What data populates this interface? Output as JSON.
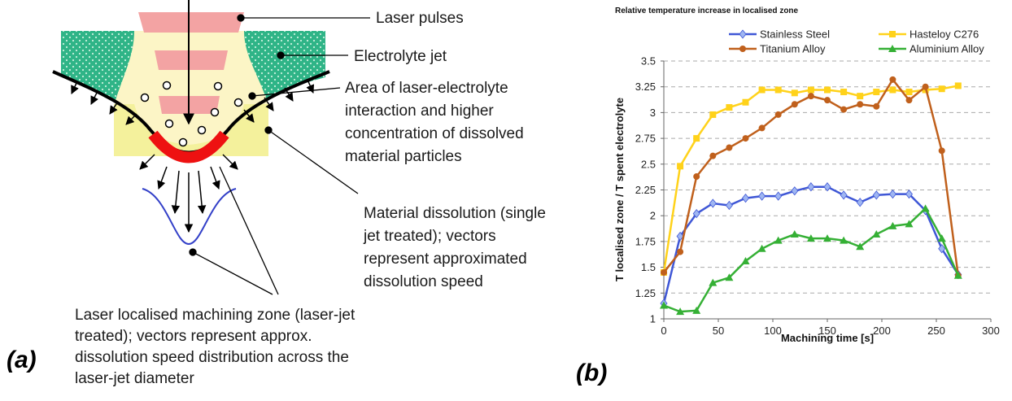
{
  "panel_a": {
    "label": "(a)",
    "labels": {
      "laser_pulses": "Laser pulses",
      "electrolyte_jet": "Electrolyte jet",
      "interaction_area": [
        "Area of laser-electrolyte",
        "interaction and higher",
        "concentration of dissolved",
        "material particles"
      ],
      "material_dissolution": [
        "Material dissolution (single",
        "jet treated); vectors",
        "represent approximated",
        "dissolution speed"
      ],
      "machining_zone": [
        "Laser localised machining zone (laser-jet",
        "treated); vectors represent approx.",
        "dissolution speed distribution across the",
        "laser-jet diameter"
      ]
    }
  },
  "panel_b": {
    "label": "(b)"
  },
  "chart_data": {
    "type": "line",
    "title": "Relative temperature increase in localised zone",
    "x_label": "Machining time [s]",
    "y_label": "T localised zone / T spent electrolyte",
    "x": [
      0,
      15,
      30,
      45,
      60,
      75,
      90,
      105,
      120,
      135,
      150,
      165,
      180,
      195,
      210,
      225,
      240,
      255,
      270
    ],
    "series": [
      {
        "name": "Stainless Steel",
        "color": "#3f57d6",
        "marker": "diamond",
        "values": [
          1.15,
          1.8,
          2.02,
          2.12,
          2.1,
          2.17,
          2.19,
          2.19,
          2.24,
          2.28,
          2.28,
          2.2,
          2.13,
          2.2,
          2.21,
          2.21,
          2.05,
          1.68,
          1.43
        ]
      },
      {
        "name": "Hasteloy C276",
        "color": "#ffd21a",
        "marker": "square",
        "values": [
          1.45,
          2.48,
          2.75,
          2.98,
          3.05,
          3.1,
          3.22,
          3.22,
          3.19,
          3.22,
          3.22,
          3.2,
          3.16,
          3.2,
          3.22,
          3.2,
          3.22,
          3.23,
          3.26
        ]
      },
      {
        "name": "Titanium Alloy",
        "color": "#c0601c",
        "marker": "circle",
        "values": [
          1.45,
          1.65,
          2.38,
          2.58,
          2.66,
          2.75,
          2.85,
          2.98,
          3.08,
          3.16,
          3.12,
          3.03,
          3.08,
          3.06,
          3.32,
          3.12,
          3.25,
          2.63,
          1.42
        ]
      },
      {
        "name": "Aluminium Alloy",
        "color": "#35b035",
        "marker": "triangle",
        "values": [
          1.13,
          1.07,
          1.08,
          1.35,
          1.4,
          1.56,
          1.68,
          1.76,
          1.82,
          1.78,
          1.78,
          1.76,
          1.7,
          1.82,
          1.9,
          1.92,
          2.07,
          1.78,
          1.42
        ]
      }
    ],
    "xlim": [
      0,
      300
    ],
    "xticks": [
      0,
      50,
      100,
      150,
      200,
      250,
      300
    ],
    "ylim": [
      1,
      3.5
    ],
    "yticks": [
      1,
      1.25,
      1.5,
      1.75,
      2,
      2.25,
      2.5,
      2.75,
      3,
      3.25,
      3.5
    ],
    "grid": true
  }
}
